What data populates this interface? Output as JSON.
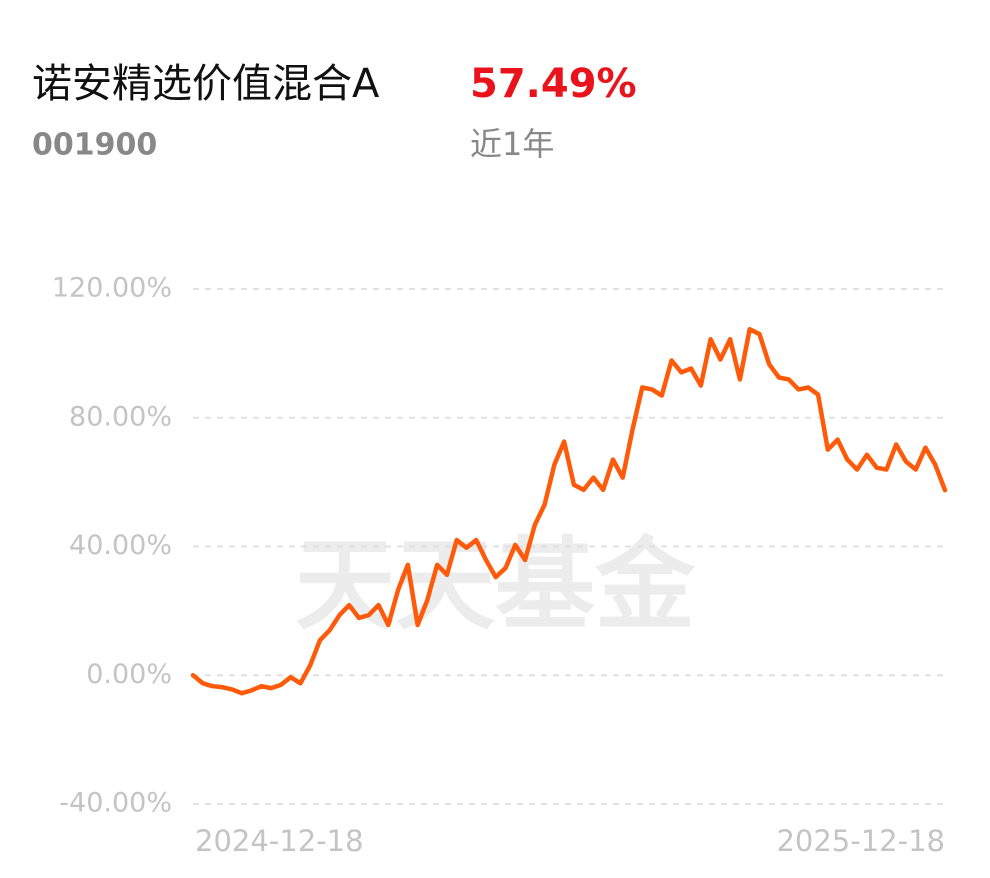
{
  "header": {
    "title": "诺安精选价值混合A",
    "return": "57.49%",
    "code": "001900",
    "period": "近1年"
  },
  "chart_data": {
    "type": "line",
    "watermark": "天天基金",
    "categories": [
      "2024-12-18",
      null,
      null,
      null,
      null,
      null,
      null,
      null,
      null,
      null,
      null,
      null,
      null,
      null,
      null,
      null,
      null,
      null,
      null,
      null,
      null,
      null,
      null,
      null,
      null,
      null,
      null,
      null,
      null,
      null,
      null,
      null,
      null,
      null,
      null,
      null,
      null,
      null,
      null,
      null,
      null,
      null,
      null,
      null,
      null,
      null,
      null,
      null,
      null,
      null,
      null,
      null,
      null,
      null,
      null,
      null,
      null,
      null,
      null,
      null,
      null,
      null,
      null,
      null,
      null,
      null,
      null,
      null,
      null,
      null,
      null,
      null,
      null,
      null,
      null,
      null,
      null,
      "2025-12-18"
    ],
    "series": [
      {
        "name": "诺安精选价值混合A",
        "color": "#ff5a0a",
        "values": [
          0,
          -2.5,
          -3.4,
          -3.7,
          -4.4,
          -5.6,
          -4.7,
          -3.4,
          -4,
          -3,
          -0.6,
          -2.5,
          3.1,
          10.9,
          14,
          18.7,
          21.8,
          17.8,
          18.7,
          21.8,
          15.6,
          26.5,
          34.3,
          15.6,
          23.4,
          34.3,
          31.2,
          42,
          39.6,
          42,
          35.8,
          30.5,
          33.3,
          40.5,
          35.8,
          46.7,
          53,
          65.4,
          72.6,
          59.2,
          57.6,
          61.4,
          57.6,
          67,
          61.4,
          76.3,
          89.4,
          88.8,
          86.9,
          97.8,
          94.1,
          95.3,
          90,
          104.4,
          98.1,
          104.4,
          91.9,
          107.5,
          106,
          96.6,
          92.5,
          91.9,
          88.8,
          89.4,
          87.2,
          70.1,
          73.2,
          67,
          63.9,
          68.5,
          64.5,
          63.9,
          71.7,
          66.4,
          63.9,
          70.7,
          65.4,
          57.49
        ]
      }
    ],
    "ylim": [
      -40,
      120
    ],
    "yticks": [
      {
        "value": -40,
        "label": "-40.00%"
      },
      {
        "value": 0,
        "label": "0.00%"
      },
      {
        "value": 40,
        "label": "40.00%"
      },
      {
        "value": 80,
        "label": "80.00%"
      },
      {
        "value": 120,
        "label": "120.00%"
      }
    ],
    "grid": true
  }
}
